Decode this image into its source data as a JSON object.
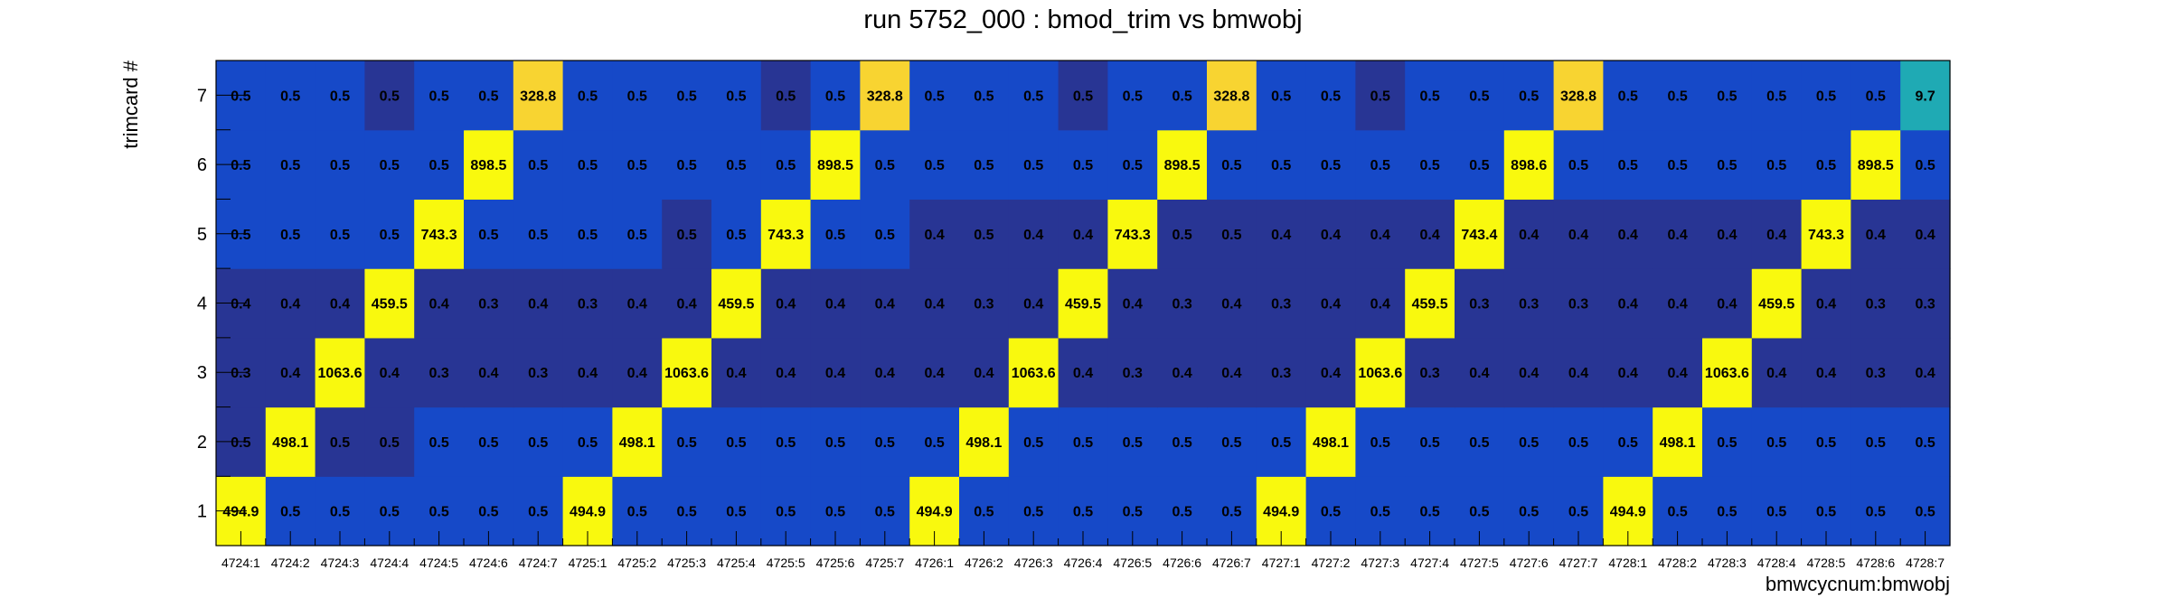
{
  "chart_data": {
    "type": "heatmap",
    "title": "run 5752_000 : bmod_trim vs bmwobj",
    "xlabel": "bmwcycnum:bmwobj",
    "ylabel": "trimcard #",
    "x_categories": [
      "4724:1",
      "4724:2",
      "4724:3",
      "4724:4",
      "4724:5",
      "4724:6",
      "4724:7",
      "4725:1",
      "4725:2",
      "4725:3",
      "4725:4",
      "4725:5",
      "4725:6",
      "4725:7",
      "4726:1",
      "4726:2",
      "4726:3",
      "4726:4",
      "4726:5",
      "4726:6",
      "4726:7",
      "4727:1",
      "4727:2",
      "4727:3",
      "4727:4",
      "4727:5",
      "4727:6",
      "4727:7",
      "4728:1",
      "4728:2",
      "4728:3",
      "4728:4",
      "4728:5",
      "4728:6",
      "4728:7"
    ],
    "y_categories": [
      "1",
      "2",
      "3",
      "4",
      "5",
      "6",
      "7"
    ],
    "values": {
      "1": [
        "494.9",
        "0.5",
        "0.5",
        "0.5",
        "0.5",
        "0.5",
        "0.5",
        "494.9",
        "0.5",
        "0.5",
        "0.5",
        "0.5",
        "0.5",
        "0.5",
        "494.9",
        "0.5",
        "0.5",
        "0.5",
        "0.5",
        "0.5",
        "0.5",
        "494.9",
        "0.5",
        "0.5",
        "0.5",
        "0.5",
        "0.5",
        "0.5",
        "494.9",
        "0.5",
        "0.5",
        "0.5",
        "0.5",
        "0.5",
        "0.5"
      ],
      "2": [
        "0.5",
        "498.1",
        "0.5",
        "0.5",
        "0.5",
        "0.5",
        "0.5",
        "0.5",
        "498.1",
        "0.5",
        "0.5",
        "0.5",
        "0.5",
        "0.5",
        "0.5",
        "498.1",
        "0.5",
        "0.5",
        "0.5",
        "0.5",
        "0.5",
        "0.5",
        "498.1",
        "0.5",
        "0.5",
        "0.5",
        "0.5",
        "0.5",
        "0.5",
        "498.1",
        "0.5",
        "0.5",
        "0.5",
        "0.5",
        "0.5"
      ],
      "3": [
        "0.3",
        "0.4",
        "1063.6",
        "0.4",
        "0.3",
        "0.4",
        "0.3",
        "0.4",
        "0.4",
        "1063.6",
        "0.4",
        "0.4",
        "0.4",
        "0.4",
        "0.4",
        "0.4",
        "1063.6",
        "0.4",
        "0.3",
        "0.4",
        "0.4",
        "0.3",
        "0.4",
        "1063.6",
        "0.3",
        "0.4",
        "0.4",
        "0.4",
        "0.4",
        "0.4",
        "1063.6",
        "0.4",
        "0.4",
        "0.3",
        "0.4"
      ],
      "4": [
        "0.4",
        "0.4",
        "0.4",
        "459.5",
        "0.4",
        "0.3",
        "0.4",
        "0.3",
        "0.4",
        "0.4",
        "459.5",
        "0.4",
        "0.4",
        "0.4",
        "0.4",
        "0.3",
        "0.4",
        "459.5",
        "0.4",
        "0.3",
        "0.4",
        "0.3",
        "0.4",
        "0.4",
        "459.5",
        "0.3",
        "0.3",
        "0.3",
        "0.4",
        "0.4",
        "0.4",
        "459.5",
        "0.4",
        "0.3",
        "0.3"
      ],
      "5": [
        "0.5",
        "0.5",
        "0.5",
        "0.5",
        "743.3",
        "0.5",
        "0.5",
        "0.5",
        "0.5",
        "0.5",
        "0.5",
        "743.3",
        "0.5",
        "0.5",
        "0.4",
        "0.5",
        "0.4",
        "0.4",
        "743.3",
        "0.5",
        "0.5",
        "0.4",
        "0.4",
        "0.4",
        "0.4",
        "743.4",
        "0.4",
        "0.4",
        "0.4",
        "0.4",
        "0.4",
        "0.4",
        "743.3",
        "0.4",
        "0.4"
      ],
      "6": [
        "0.5",
        "0.5",
        "0.5",
        "0.5",
        "0.5",
        "898.5",
        "0.5",
        "0.5",
        "0.5",
        "0.5",
        "0.5",
        "0.5",
        "898.5",
        "0.5",
        "0.5",
        "0.5",
        "0.5",
        "0.5",
        "0.5",
        "898.5",
        "0.5",
        "0.5",
        "0.5",
        "0.5",
        "0.5",
        "0.5",
        "898.6",
        "0.5",
        "0.5",
        "0.5",
        "0.5",
        "0.5",
        "0.5",
        "898.5",
        "0.5"
      ],
      "7": [
        "0.5",
        "0.5",
        "0.5",
        "0.5",
        "0.5",
        "0.5",
        "328.8",
        "0.5",
        "0.5",
        "0.5",
        "0.5",
        "0.5",
        "0.5",
        "328.8",
        "0.5",
        "0.5",
        "0.5",
        "0.5",
        "0.5",
        "0.5",
        "328.8",
        "0.5",
        "0.5",
        "0.5",
        "0.5",
        "0.5",
        "0.5",
        "328.8",
        "0.5",
        "0.5",
        "0.5",
        "0.5",
        "0.5",
        "0.5",
        "9.7"
      ]
    },
    "cell_colors": {
      "1": [
        "Y",
        "B",
        "B",
        "B",
        "B",
        "B",
        "B",
        "Y",
        "B",
        "B",
        "B",
        "B",
        "B",
        "B",
        "Y",
        "B",
        "B",
        "B",
        "B",
        "B",
        "B",
        "Y",
        "B",
        "B",
        "B",
        "B",
        "B",
        "B",
        "Y",
        "B",
        "B",
        "B",
        "B",
        "B",
        "B"
      ],
      "2": [
        "D",
        "Y",
        "D",
        "D",
        "B",
        "B",
        "B",
        "B",
        "Y",
        "B",
        "B",
        "B",
        "B",
        "B",
        "B",
        "Y",
        "B",
        "B",
        "B",
        "B",
        "B",
        "B",
        "Y",
        "B",
        "B",
        "B",
        "B",
        "B",
        "B",
        "Y",
        "B",
        "B",
        "B",
        "B",
        "B"
      ],
      "3": [
        "D",
        "D",
        "Y",
        "D",
        "D",
        "D",
        "D",
        "D",
        "D",
        "Y",
        "D",
        "D",
        "D",
        "D",
        "D",
        "D",
        "Y",
        "D",
        "D",
        "D",
        "D",
        "D",
        "D",
        "Y",
        "D",
        "D",
        "D",
        "D",
        "D",
        "D",
        "Y",
        "D",
        "D",
        "D",
        "D"
      ],
      "4": [
        "D",
        "D",
        "D",
        "Y",
        "D",
        "D",
        "D",
        "D",
        "D",
        "D",
        "Y",
        "D",
        "D",
        "D",
        "D",
        "D",
        "D",
        "Y",
        "D",
        "D",
        "D",
        "D",
        "D",
        "D",
        "Y",
        "D",
        "D",
        "D",
        "D",
        "D",
        "D",
        "Y",
        "D",
        "D",
        "D"
      ],
      "5": [
        "B",
        "B",
        "B",
        "B",
        "Y",
        "B",
        "B",
        "B",
        "B",
        "D",
        "B",
        "Y",
        "B",
        "B",
        "D",
        "D",
        "D",
        "D",
        "Y",
        "D",
        "D",
        "D",
        "D",
        "D",
        "D",
        "Y",
        "D",
        "D",
        "D",
        "D",
        "D",
        "D",
        "Y",
        "D",
        "D"
      ],
      "6": [
        "B",
        "B",
        "B",
        "B",
        "B",
        "Y",
        "B",
        "B",
        "B",
        "B",
        "B",
        "B",
        "Y",
        "B",
        "B",
        "B",
        "B",
        "B",
        "B",
        "Y",
        "B",
        "B",
        "B",
        "B",
        "B",
        "B",
        "Y",
        "B",
        "B",
        "B",
        "B",
        "B",
        "B",
        "Y",
        "B"
      ],
      "7": [
        "B",
        "B",
        "B",
        "D",
        "B",
        "B",
        "O",
        "B",
        "B",
        "B",
        "B",
        "D",
        "B",
        "O",
        "B",
        "B",
        "B",
        "D",
        "B",
        "B",
        "O",
        "B",
        "B",
        "D",
        "B",
        "B",
        "B",
        "O",
        "B",
        "B",
        "B",
        "B",
        "B",
        "B",
        "T"
      ]
    },
    "palette": {
      "Y": "#f9f90e",
      "O": "#f8d431",
      "B": "#1649c8",
      "D": "#283594",
      "T": "#1faab4"
    },
    "grid": false
  }
}
